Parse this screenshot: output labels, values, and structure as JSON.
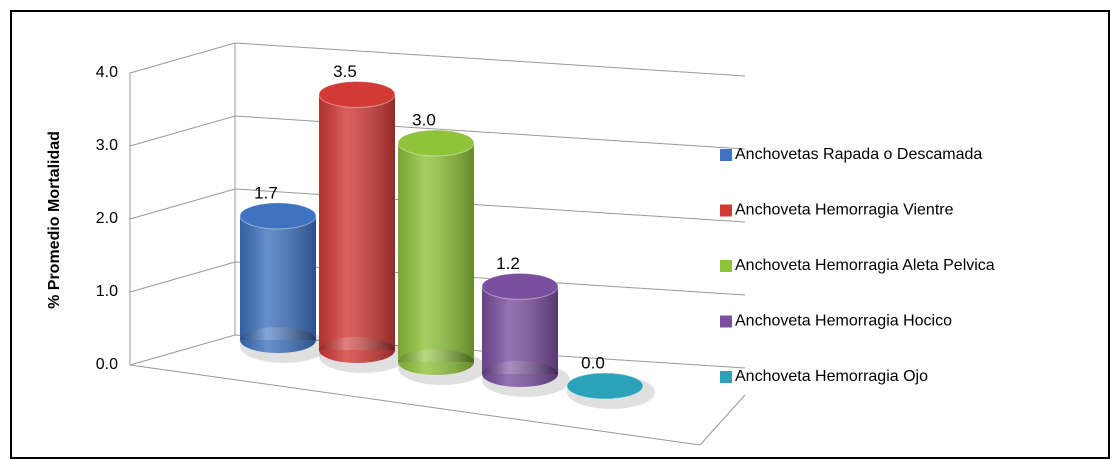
{
  "chart_data": {
    "type": "bar",
    "ylabel": "%  Promedio Mortalidad",
    "ylim": [
      0,
      4
    ],
    "yticks": [
      {
        "value": 0,
        "label": "0.0"
      },
      {
        "value": 1,
        "label": "1.0"
      },
      {
        "value": 2,
        "label": "2.0"
      },
      {
        "value": 3,
        "label": "3.0"
      },
      {
        "value": 4,
        "label": "4.0"
      }
    ],
    "grid": true,
    "legend": "right",
    "series": [
      {
        "name": "Anchovetas Rapada o Descamada",
        "color": "#3f73c0",
        "values": [
          1.7
        ],
        "value_labels": [
          "1.7"
        ]
      },
      {
        "name": "Anchoveta Hemorragia Vientre",
        "color": "#d23a36",
        "values": [
          3.5
        ],
        "value_labels": [
          "3.5"
        ]
      },
      {
        "name": "Anchoveta Hemorragia Aleta Pelvica",
        "color": "#8fc43a",
        "values": [
          3.0
        ],
        "value_labels": [
          "3.0"
        ]
      },
      {
        "name": "Anchoveta Hemorragia Hocico",
        "color": "#7b4fa0",
        "values": [
          1.2
        ],
        "value_labels": [
          "1.2"
        ]
      },
      {
        "name": "Anchoveta Hemorragia Ojo",
        "color": "#2aa3b8",
        "values": [
          0.0
        ],
        "value_labels": [
          "0.0"
        ]
      }
    ]
  }
}
